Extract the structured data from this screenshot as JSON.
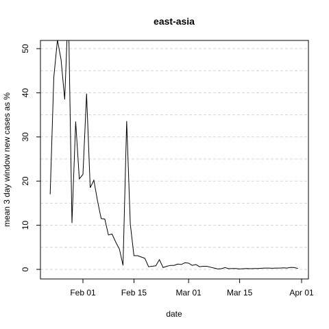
{
  "chart_data": {
    "type": "line",
    "title": "east-asia",
    "xlabel": "date",
    "ylabel": "mean  3  day window new cases as %",
    "x_ticks": [
      "Feb 01",
      "Feb 15",
      "Mar 01",
      "Mar 15",
      "Apr 01"
    ],
    "y_ticks": [
      "0",
      "10",
      "20",
      "30",
      "40",
      "50"
    ],
    "ylim": [
      -2,
      52
    ],
    "xlim": [
      "2020-01-20",
      "2020-04-01"
    ],
    "grid": "horizontal dashed",
    "series": [
      {
        "x": [
          "2020-01-23",
          "2020-01-24",
          "2020-01-25",
          "2020-01-26",
          "2020-01-27",
          "2020-01-28",
          "2020-01-29",
          "2020-01-30",
          "2020-01-31",
          "2020-02-01",
          "2020-02-02",
          "2020-02-03",
          "2020-02-04",
          "2020-02-05",
          "2020-02-06",
          "2020-02-07",
          "2020-02-08",
          "2020-02-09",
          "2020-02-10",
          "2020-02-11",
          "2020-02-12",
          "2020-02-13",
          "2020-02-14",
          "2020-02-15",
          "2020-02-16",
          "2020-02-17",
          "2020-02-18",
          "2020-02-19",
          "2020-02-20",
          "2020-02-21",
          "2020-02-22",
          "2020-02-23",
          "2020-02-24",
          "2020-02-25",
          "2020-02-26",
          "2020-02-27",
          "2020-02-28",
          "2020-02-29",
          "2020-03-01",
          "2020-03-02",
          "2020-03-03",
          "2020-03-04",
          "2020-03-05",
          "2020-03-06",
          "2020-03-07",
          "2020-03-08",
          "2020-03-09",
          "2020-03-10",
          "2020-03-11",
          "2020-03-12",
          "2020-03-13",
          "2020-03-14",
          "2020-03-15",
          "2020-03-16",
          "2020-03-17",
          "2020-03-18",
          "2020-03-19",
          "2020-03-20",
          "2020-03-21",
          "2020-03-22",
          "2020-03-23",
          "2020-03-24",
          "2020-03-25",
          "2020-03-26",
          "2020-03-27",
          "2020-03-28",
          "2020-03-29",
          "2020-03-30",
          "2020-03-31"
        ],
        "values": [
          17,
          43.5,
          52,
          47.5,
          38.5,
          60,
          10.5,
          33.5,
          20.5,
          21.5,
          39.8,
          18.5,
          20.2,
          15.5,
          11.5,
          11.4,
          7.8,
          8.0,
          6.2,
          4.6,
          0.9,
          33.6,
          10.3,
          3.1,
          3.1,
          2.8,
          2.5,
          0.6,
          0.7,
          0.8,
          2.2,
          0.4,
          0.7,
          0.9,
          0.9,
          1.2,
          1.1,
          1.5,
          1.4,
          0.9,
          1.1,
          0.6,
          0.7,
          0.7,
          0.5,
          0.3,
          0.1,
          0.15,
          0.4,
          0.15,
          0.2,
          0.2,
          0.1,
          0.15,
          0.2,
          0.15,
          0.2,
          0.2,
          0.25,
          0.3,
          0.3,
          0.25,
          0.3,
          0.3,
          0.35,
          0.3,
          0.45,
          0.4,
          0.2
        ]
      }
    ]
  }
}
